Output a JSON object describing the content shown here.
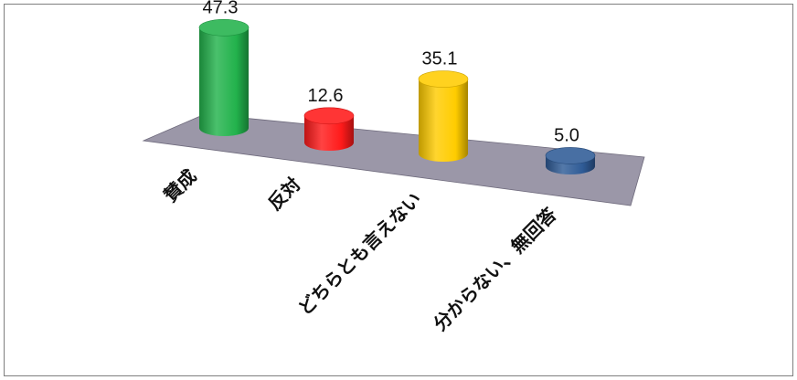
{
  "chart_data": {
    "type": "bar",
    "style": "3d-cylinder",
    "categories": [
      "賛成",
      "反対",
      "どちらとも言えない",
      "分からない、無回答"
    ],
    "values": [
      47.3,
      12.6,
      35.1,
      5.0
    ],
    "value_labels": [
      "47.3",
      "12.6",
      "35.1",
      "5.0"
    ],
    "colors": [
      "#22b24c",
      "#ff1a1a",
      "#ffcc00",
      "#2f5b96"
    ],
    "floor_color": "#9b97a8",
    "title": "",
    "xlabel": "",
    "ylabel": "",
    "grid": false,
    "legend": "none"
  }
}
